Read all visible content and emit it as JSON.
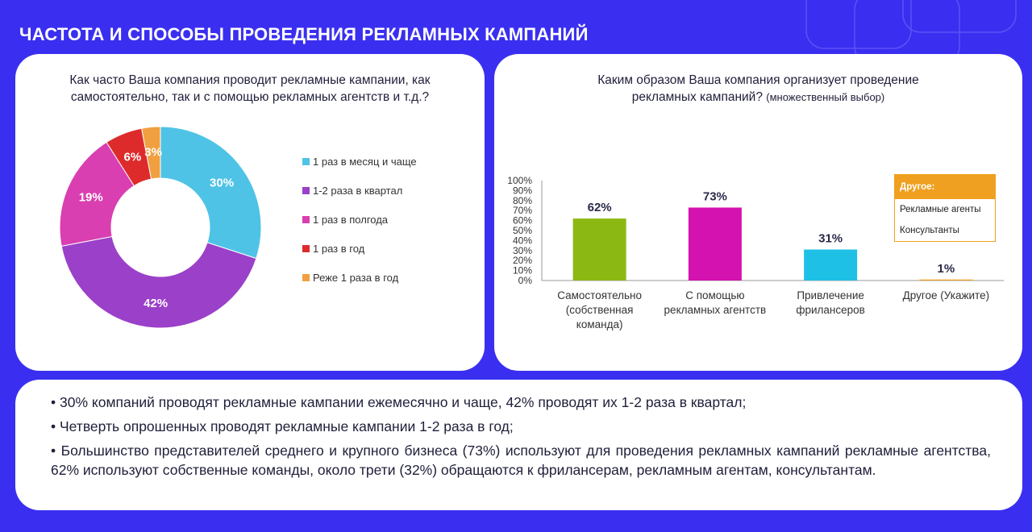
{
  "page": {
    "title": "ЧАСТОТА И СПОСОБЫ ПРОВЕДЕНИЯ РЕКЛАМНЫХ КАМПАНИЙ",
    "background_color": "#3a2ff0"
  },
  "left_panel": {
    "question_line1": "Как часто Ваша компания проводит рекламные кампании, как",
    "question_line2": "самостоятельно, так и с помощью рекламных агентств и т.д.?"
  },
  "right_panel": {
    "question_line1": "Каким образом Ваша компания организует проведение",
    "question_line2_main": "рекламных кампаний?",
    "question_line2_note": "(множественный выбор)",
    "other_box": {
      "header": "Другое:",
      "items": [
        "Рекламные агенты",
        "Консультанты"
      ]
    }
  },
  "chart_data": [
    {
      "type": "pie",
      "donut": true,
      "categories": [
        "1 раз в месяц и чаще",
        "1-2 раза в квартал",
        "1 раз в полгода",
        "1 раз в год",
        "Реже 1 раза в год"
      ],
      "values": [
        30,
        42,
        19,
        6,
        3
      ],
      "labels": [
        "30%",
        "42%",
        "19%",
        "6%",
        "3%"
      ],
      "colors": [
        "#4ec3e6",
        "#9b40c8",
        "#d93fb0",
        "#dd2b2b",
        "#f0a040"
      ],
      "legend_position": "right"
    },
    {
      "type": "bar",
      "categories": [
        [
          "Самостоятельно",
          "(собственная",
          "команда)"
        ],
        [
          "С помощью",
          "рекламных агентств"
        ],
        [
          "Привлечение",
          "фрилансеров"
        ],
        [
          "Другое (Укажите)"
        ]
      ],
      "values": [
        62,
        73,
        31,
        1
      ],
      "labels": [
        "62%",
        "73%",
        "31%",
        "1%"
      ],
      "colors": [
        "#8cb814",
        "#d412b0",
        "#1fc0e6",
        "#f0a020"
      ],
      "ylim": [
        0,
        100
      ],
      "yticks": [
        "0%",
        "10%",
        "20%",
        "30%",
        "40%",
        "50%",
        "60%",
        "70%",
        "80%",
        "90%",
        "100%"
      ],
      "grid": false
    }
  ],
  "summary": {
    "bullets": [
      "• 30% компаний проводят рекламные кампании ежемесячно и чаще, 42% проводят их 1-2 раза в квартал;",
      "• Четверть опрошенных проводят рекламные кампании 1-2 раза в год;",
      "• Большинство представителей среднего и крупного бизнеса (73%) используют для проведения рекламных кампаний рекламные агентства, 62% используют собственные команды, около трети (32%) обращаются к фрилансерам, рекламным агентам, консультантам."
    ]
  }
}
